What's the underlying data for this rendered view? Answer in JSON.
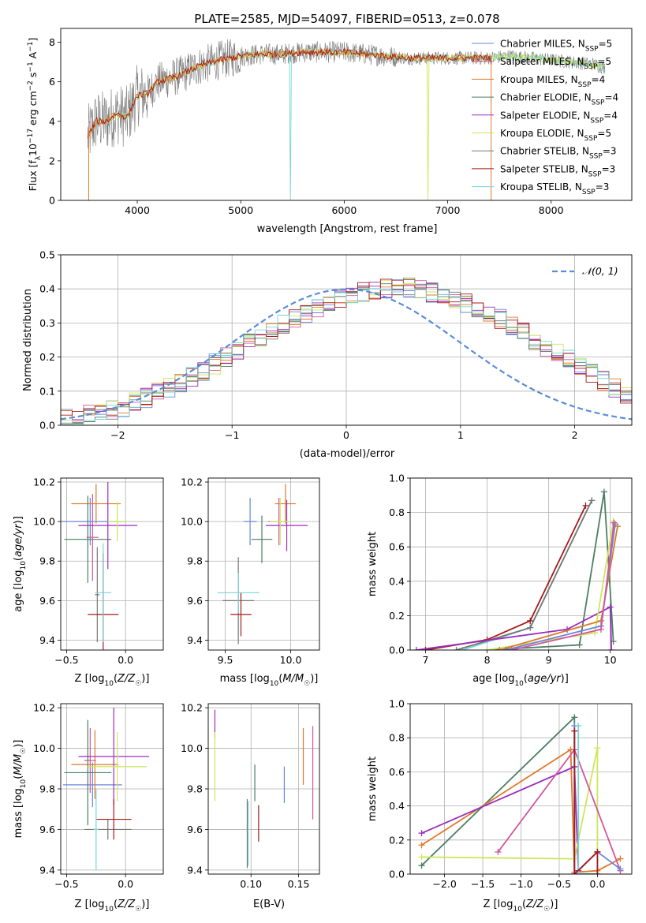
{
  "figure_title": "PLATE=2585, MJD=54097, FIBERID=0513, z=0.078",
  "colors": {
    "Chabrier MILES": "#6b85d9",
    "Salpeter MILES": "#d1569d",
    "Kroupa MILES": "#dd7a2c",
    "Chabrier ELODIE": "#4c7f63",
    "Salpeter ELODIE": "#9a2ebc",
    "Kroupa ELODIE": "#cde659",
    "Chabrier STELIB": "#777777",
    "Salpeter STELIB": "#a61919",
    "Kroupa STELIB": "#77d4d7"
  },
  "chart_data": [
    {
      "id": "spectrum",
      "type": "line",
      "title": "PLATE=2585, MJD=54097, FIBERID=0513, z=0.078",
      "xlabel": "wavelength [Angstrom, rest frame]",
      "ylabel": "Flux [f_λ 10^-17 erg cm^-2 s^-1 A^-1]",
      "xlim": [
        3260,
        8780
      ],
      "ylim": [
        0,
        8.7
      ],
      "xticks": [
        4000,
        5000,
        6000,
        7000,
        8000
      ],
      "yticks": [
        0,
        2,
        4,
        6,
        8
      ],
      "legend_position": "upper right",
      "legend": [
        {
          "name": "Chabrier MILES",
          "nssp": "5"
        },
        {
          "name": "Salpeter MILES",
          "nssp": "5"
        },
        {
          "name": "Kroupa MILES",
          "nssp": "4"
        },
        {
          "name": "Chabrier ELODIE",
          "nssp": "4"
        },
        {
          "name": "Salpeter ELODIE",
          "nssp": "4"
        },
        {
          "name": "Kroupa ELODIE",
          "nssp": "5"
        },
        {
          "name": "Chabrier STELIB",
          "nssp": "3"
        },
        {
          "name": "Salpeter STELIB",
          "nssp": "3"
        },
        {
          "name": "Kroupa STELIB",
          "nssp": "3"
        }
      ],
      "data_continuum": {
        "x": [
          3520,
          3600,
          3700,
          3800,
          3900,
          4000,
          4100,
          4200,
          4400,
          4600,
          4800,
          5000,
          5200,
          5400,
          5600,
          5800,
          6000,
          6200,
          6400,
          6600,
          6800,
          7000,
          7200,
          7400,
          7600,
          7800,
          8000,
          8200,
          8400,
          8520
        ],
        "y": [
          3.2,
          4.0,
          4.0,
          4.4,
          4.2,
          5.3,
          5.4,
          6.0,
          6.3,
          6.8,
          7.1,
          7.3,
          7.4,
          7.4,
          7.5,
          7.5,
          7.5,
          7.4,
          7.3,
          7.2,
          7.2,
          7.2,
          7.2,
          7.2,
          7.3,
          7.2,
          7.1,
          7.0,
          6.9,
          6.7
        ]
      },
      "model_colors": [
        "#77d4d7",
        "#cde659",
        "#dd7a2c",
        "#a61919"
      ]
    },
    {
      "id": "residuals",
      "type": "bar",
      "xlabel": "(data-model)/error",
      "ylabel": "Normed distribution",
      "xlim": [
        -2.5,
        2.5
      ],
      "ylim": [
        0,
        0.5
      ],
      "xticks": [
        -2,
        -1,
        0,
        1,
        2
      ],
      "yticks": [
        0.0,
        0.1,
        0.2,
        0.3,
        0.4,
        0.5
      ],
      "bin_edges_start": -2.5,
      "bin_width": 0.1,
      "base_histogram": [
        0.02,
        0.025,
        0.03,
        0.035,
        0.045,
        0.055,
        0.065,
        0.08,
        0.095,
        0.11,
        0.125,
        0.14,
        0.16,
        0.18,
        0.2,
        0.22,
        0.24,
        0.26,
        0.28,
        0.295,
        0.31,
        0.325,
        0.34,
        0.355,
        0.37,
        0.38,
        0.39,
        0.395,
        0.4,
        0.405,
        0.405,
        0.4,
        0.39,
        0.38,
        0.37,
        0.355,
        0.34,
        0.325,
        0.31,
        0.29,
        0.27,
        0.25,
        0.23,
        0.21,
        0.19,
        0.17,
        0.15,
        0.13,
        0.11,
        0.095
      ],
      "gaussian_label": "𝒩(0, 1)",
      "gaussian_color": "#5b8dd6"
    },
    {
      "id": "age-vs-Z",
      "type": "scatter",
      "xlabel": "Z [log10(Z/Z☉)]",
      "ylabel": "age [log10(age/yr)]",
      "xlim": [
        -0.55,
        0.32
      ],
      "ylim": [
        9.35,
        10.22
      ],
      "xticks": [
        -0.5,
        0.0
      ],
      "yticks": [
        9.4,
        9.6,
        9.8,
        10.0,
        10.2
      ],
      "points": [
        {
          "label": "Chabrier MILES",
          "x": -0.3,
          "y": 10.0,
          "xerr": 0.3,
          "yerr": 0.12
        },
        {
          "label": "Salpeter MILES",
          "x": -0.28,
          "y": 9.92,
          "xerr": 0.05,
          "yerr": 0.22
        },
        {
          "label": "Kroupa MILES",
          "x": -0.25,
          "y": 10.09,
          "xerr": 0.21,
          "yerr": 0.1
        },
        {
          "label": "Chabrier ELODIE",
          "x": -0.32,
          "y": 9.91,
          "xerr": 0.2,
          "yerr": 0.22
        },
        {
          "label": "Salpeter ELODIE",
          "x": -0.15,
          "y": 9.98,
          "xerr": 0.25,
          "yerr": 0.22
        },
        {
          "label": "Kroupa ELODIE",
          "x": -0.07,
          "y": 10.0,
          "xerr": 0.08,
          "yerr": 0.1
        },
        {
          "label": "Chabrier STELIB",
          "x": -0.24,
          "y": 9.63,
          "xerr": 0.02,
          "yerr": 0.24
        },
        {
          "label": "Salpeter STELIB",
          "x": -0.19,
          "y": 9.53,
          "xerr": 0.13,
          "yerr": 0.31
        },
        {
          "label": "Kroupa STELIB",
          "x": -0.19,
          "y": 9.64,
          "xerr": 0.07,
          "yerr": 0.25
        }
      ]
    },
    {
      "id": "age-vs-mass",
      "type": "scatter",
      "xlabel": "mass [log10(M/M☉)]",
      "ylabel": "",
      "xlim": [
        9.37,
        10.22
      ],
      "ylim": [
        9.35,
        10.22
      ],
      "xticks": [
        9.5,
        10.0
      ],
      "yticks": [
        9.4,
        9.6,
        9.8,
        10.0,
        10.2
      ],
      "points": [
        {
          "label": "Chabrier MILES",
          "x": 9.69,
          "y": 10.0,
          "xerr": 0.05,
          "yerr": 0.12
        },
        {
          "label": "Salpeter MILES",
          "x": 9.91,
          "y": 10.0,
          "xerr": 0.08,
          "yerr": 0.12
        },
        {
          "label": "Kroupa MILES",
          "x": 9.96,
          "y": 10.09,
          "xerr": 0.08,
          "yerr": 0.1
        },
        {
          "label": "Chabrier ELODIE",
          "x": 9.78,
          "y": 9.91,
          "xerr": 0.08,
          "yerr": 0.12
        },
        {
          "label": "Salpeter ELODIE",
          "x": 9.97,
          "y": 9.98,
          "xerr": 0.16,
          "yerr": 0.13
        },
        {
          "label": "Kroupa ELODIE",
          "x": 9.92,
          "y": 10.0,
          "xerr": 0.08,
          "yerr": 0.12
        },
        {
          "label": "Chabrier STELIB",
          "x": 9.6,
          "y": 9.6,
          "xerr": 0.12,
          "yerr": 0.22
        },
        {
          "label": "Salpeter STELIB",
          "x": 9.62,
          "y": 9.53,
          "xerr": 0.08,
          "yerr": 0.11
        },
        {
          "label": "Kroupa STELIB",
          "x": 9.6,
          "y": 9.64,
          "xerr": 0.16,
          "yerr": 0.1
        }
      ]
    },
    {
      "id": "weight-vs-age",
      "type": "line",
      "xlabel": "age [log10(age/yr)]",
      "ylabel": "mass weight",
      "xlim": [
        6.75,
        10.35
      ],
      "ylim": [
        0,
        1.0
      ],
      "xticks": [
        7,
        8,
        9,
        10
      ],
      "yticks": [
        0.0,
        0.2,
        0.4,
        0.6,
        0.8,
        1.0
      ],
      "series": [
        {
          "label": "Salpeter STELIB",
          "x": [
            7.0,
            8.0,
            8.7,
            9.6
          ],
          "y": [
            0.0,
            0.06,
            0.17,
            0.84
          ]
        },
        {
          "label": "Kroupa STELIB",
          "x": [
            7.6,
            8.7,
            9.7
          ],
          "y": [
            0.0,
            0.13,
            0.87
          ]
        },
        {
          "label": "Chabrier STELIB",
          "x": [
            7.5,
            8.7,
            9.7
          ],
          "y": [
            0.0,
            0.13,
            0.87
          ]
        },
        {
          "label": "Chabrier ELODIE",
          "x": [
            8.0,
            9.5,
            9.9,
            10.05
          ],
          "y": [
            0.0,
            0.03,
            0.92,
            0.05
          ]
        },
        {
          "label": "Salpeter ELODIE",
          "x": [
            6.85,
            9.3,
            10.0,
            10.02
          ],
          "y": [
            0.0,
            0.12,
            0.25,
            0.0
          ]
        },
        {
          "label": "Kroupa ELODIE",
          "x": [
            8.0,
            9.75,
            10.05
          ],
          "y": [
            0.0,
            0.1,
            0.75
          ]
        },
        {
          "label": "Kroupa MILES",
          "x": [
            8.2,
            9.85,
            10.12
          ],
          "y": [
            0.0,
            0.17,
            0.72
          ]
        },
        {
          "label": "Chabrier MILES",
          "x": [
            8.3,
            9.85,
            10.08
          ],
          "y": [
            0.0,
            0.14,
            0.73
          ]
        },
        {
          "label": "Salpeter MILES",
          "x": [
            8.4,
            9.85,
            10.06
          ],
          "y": [
            0.0,
            0.12,
            0.74
          ]
        }
      ]
    },
    {
      "id": "mass-vs-Z",
      "type": "scatter",
      "xlabel": "Z [log10(Z/Z☉)]",
      "ylabel": "mass [log10(M/M☉)]",
      "xlim": [
        -0.55,
        0.32
      ],
      "ylim": [
        9.38,
        10.22
      ],
      "xticks": [
        -0.5,
        0.0
      ],
      "yticks": [
        9.4,
        9.6,
        9.8,
        10.0,
        10.2
      ],
      "points": [
        {
          "label": "Chabrier MILES",
          "x": -0.28,
          "y": 9.82,
          "xerr": 0.25,
          "yerr": 0.11
        },
        {
          "label": "Salpeter MILES",
          "x": -0.3,
          "y": 9.94,
          "xerr": 0.05,
          "yerr": 0.16
        },
        {
          "label": "Kroupa MILES",
          "x": -0.26,
          "y": 9.92,
          "xerr": 0.2,
          "yerr": 0.17
        },
        {
          "label": "Chabrier ELODIE",
          "x": -0.32,
          "y": 9.88,
          "xerr": 0.2,
          "yerr": 0.26
        },
        {
          "label": "Salpeter ELODIE",
          "x": -0.1,
          "y": 9.96,
          "xerr": 0.3,
          "yerr": 0.24
        },
        {
          "label": "Kroupa ELODIE",
          "x": -0.07,
          "y": 9.91,
          "xerr": 0.25,
          "yerr": 0.17
        },
        {
          "label": "Chabrier STELIB",
          "x": -0.15,
          "y": 9.6,
          "xerr": 0.2,
          "yerr": 0.05
        },
        {
          "label": "Salpeter STELIB",
          "x": -0.1,
          "y": 9.65,
          "xerr": 0.15,
          "yerr": 0.1
        },
        {
          "label": "Kroupa STELIB",
          "x": -0.25,
          "y": 9.6,
          "xerr": 0.02,
          "yerr": 0.2
        }
      ]
    },
    {
      "id": "mass-vs-ebv",
      "type": "scatter",
      "xlabel": "E(B-V)",
      "ylabel": "",
      "xlim": [
        0.055,
        0.172
      ],
      "ylim": [
        9.38,
        10.22
      ],
      "xticks": [
        0.1,
        0.15
      ],
      "yticks": [
        9.4,
        9.6,
        9.8,
        10.0,
        10.2
      ],
      "points": [
        {
          "label": "Chabrier MILES",
          "x": 0.135,
          "y": 9.82,
          "yerr": 0.09
        },
        {
          "label": "Salpeter MILES",
          "x": 0.165,
          "y": 9.88,
          "yerr": 0.23
        },
        {
          "label": "Kroupa MILES",
          "x": 0.155,
          "y": 9.96,
          "yerr": 0.14
        },
        {
          "label": "Chabrier ELODIE",
          "x": 0.104,
          "y": 9.83,
          "yerr": 0.09
        },
        {
          "label": "Salpeter ELODIE",
          "x": 0.062,
          "y": 10.12,
          "yerr": 0.07
        },
        {
          "label": "Kroupa ELODIE",
          "x": 0.062,
          "y": 9.91,
          "yerr": 0.17
        },
        {
          "label": "Chabrier STELIB",
          "x": 0.096,
          "y": 9.58,
          "yerr": 0.17
        },
        {
          "label": "Salpeter STELIB",
          "x": 0.108,
          "y": 9.63,
          "yerr": 0.09
        },
        {
          "label": "Kroupa STELIB",
          "x": 0.097,
          "y": 9.58,
          "yerr": 0.16
        }
      ]
    },
    {
      "id": "weight-vs-Z",
      "type": "line",
      "xlabel": "Z [log10(Z/Z☉)]",
      "ylabel": "mass weight",
      "xlim": [
        -2.45,
        0.45
      ],
      "ylim": [
        0,
        1.0
      ],
      "xticks": [
        -2.0,
        -1.5,
        -1.0,
        -0.5,
        0.0
      ],
      "yticks": [
        0.0,
        0.2,
        0.4,
        0.6,
        0.8,
        1.0
      ],
      "series": [
        {
          "label": "Chabrier ELODIE",
          "x": [
            -2.3,
            -0.3,
            -0.3,
            0.0
          ],
          "y": [
            0.05,
            0.92,
            0.0,
            0.0
          ]
        },
        {
          "label": "Kroupa MILES",
          "x": [
            -2.3,
            -0.35,
            -0.3,
            0.0,
            0.3
          ],
          "y": [
            0.17,
            0.73,
            0.01,
            0.02,
            0.09
          ]
        },
        {
          "label": "Salpeter ELODIE",
          "x": [
            -2.3,
            -0.3,
            -0.25,
            0.0
          ],
          "y": [
            0.24,
            0.63,
            0.02,
            0.13
          ]
        },
        {
          "label": "Kroupa ELODIE",
          "x": [
            -2.3,
            -0.3,
            0.0,
            0.0
          ],
          "y": [
            0.1,
            0.09,
            0.74,
            0.0
          ]
        },
        {
          "label": "Salpeter MILES",
          "x": [
            -1.3,
            -0.3,
            0.3
          ],
          "y": [
            0.13,
            0.73,
            0.02
          ]
        },
        {
          "label": "Chabrier MILES",
          "x": [
            -0.3,
            -0.3,
            0.0,
            0.3
          ],
          "y": [
            0.87,
            0.0,
            0.13,
            0.03
          ]
        },
        {
          "label": "Kroupa STELIB",
          "x": [
            -0.25,
            -0.25
          ],
          "y": [
            0.87,
            0.0
          ]
        },
        {
          "label": "Salpeter STELIB",
          "x": [
            -0.3,
            -0.3,
            0.0,
            0.0
          ],
          "y": [
            0.84,
            0.0,
            0.13,
            0.0
          ]
        }
      ]
    }
  ]
}
